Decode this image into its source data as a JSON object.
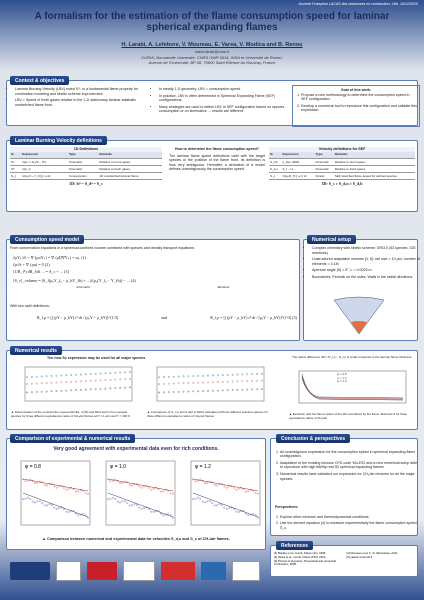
{
  "header": {
    "event": "Journée Française LACAS des doctorants en combustion, Lille, 16/12/2015",
    "title": "A formalism for the estimation of the flame consumption speed for laminar spherical expanding flames",
    "authors": "H. Larabi, A. Lefebvre, V. Moureau, E. Varea, V. Modica and B. Renou",
    "email": "hakim.larabi@coria.fr",
    "affiliation": [
      "CORIA, Normandie Université, CNRS UMR 6614, INSA et Université de Rouen,",
      "Avenue de l'Université, BP 08, 76800 Saint Etienne du Rouvray, France"
    ]
  },
  "context": {
    "heading": "Context & objectives",
    "col1": [
      "Laminar Burning Velocity (LBV) noted Sₗ⁰, is a fundamental flame property for combustion modeling and kinetic scheme improvement.",
      "LBV = Speed of fresh gases relative to the 1-D stationnary laminar adiabatic unstretched flame front."
    ],
    "col2": [
      "In steady 1-D geometry, LBV = consumption speed.",
      "In practice, LBV is often determined in Spherical Expanding Flame (SEF) configurations.",
      "Many strategies are used to define LBV in SEF configuration based on species consumption or on kinematics → results are different."
    ],
    "goal_title": "Goal of this work:",
    "goals": [
      "Propose a new methodology to determine the consumption speed in SEF configuration.",
      "Develop a numerical tool to reproduce this configuration and validate this expression."
    ]
  },
  "definitions": {
    "heading": "Laminar Burning Velocity definitions",
    "table1": {
      "caption": "1D Definitions",
      "header": [
        "Sₗ",
        "Expression",
        "Type",
        "Remarks"
      ],
      "rows": [
        [
          "Sₗᵘ",
          "ṁ/ρᵤ = Sᵤ(Ψ̄ − Ψ̄ᵤ)",
          "Kinematic",
          "Relative to burnt gases"
        ],
        [
          "Sₗᵇ",
          "ṁ/ρ_b",
          "Kinematic",
          "Relative to fresh gases"
        ],
        [
          "S_c",
          "1/(ρᵤ(Yᵤ−Y_b)) ∫ ω̇ dx",
          "Consumption",
          "1D unstretched laminar flame"
        ]
      ],
      "footer": "1D: Sₗᵘ = S_dᵘ = S_c"
    },
    "middle": {
      "question": "How to determine the flame consumption speed?",
      "text": "The laminar flame speed definitions valid with the target species or the position of the flame front. Its definition is thus very ambiguous. Hereafter, a derivation of a model defines unambiguously the consumption speed."
    },
    "table2": {
      "caption": "Velocity definitions for SEF",
      "header": [
        "Sₗ",
        "Expression",
        "Type",
        "Remarks"
      ],
      "rows": [
        [
          "S_d,b",
          "ρ_b/ρᵤ dR/dt",
          "Kinematic",
          "Relative to burnt gases"
        ],
        [
          "S_d,u",
          "S_f − Uᵤ",
          "Kinematic",
          "Relative to fresh gases"
        ],
        [
          "S_c",
          "1/(ρᵤR_f²) ∫ ω̇ r² dr",
          "Kinetic",
          "SEF stretched flame speed for defined species"
        ]
      ],
      "footer": "3D: S_c ≠ S_d,u ≠ S_d,b"
    }
  },
  "model": {
    "heading": "Consumption speed model",
    "intro": "From conservation equations in a spherical confined volume combined with species and density transport equations:",
    "equations": [
      "∂ρYₖ/∂t + ∇·(ρuYₖ) = ∇·(ρD∇Yₖ) + ω̇ₖ   (1)",
      "∂ρ/∂t + ∇·(ρu) = 0   (2)",
      "(1/R_f²) dR_f/dt ... = S_c + ... (3)"
    ],
    "main": "⟨S_c⟩_volume = (S_f(ρᵤY_fᵤ − ρ_bY_fb) + ...)/(ρᵤ(Y_fᵤ − Y_fb)) − ...   (4)",
    "labels": [
      "Kinematic",
      "Residual"
    ],
    "radii_intro": "With two radii definitions:",
    "radii": [
      "R_f,ρ = [∫ (ρY − ρ_bY) r² dr / (ρᵤY − ρ_bY)]^(1/3)",
      "R_f,ρ = [∫ (ρY − ρ_bY) r² dr / (ρᵤY − ρ_bY)]^(1/3)   (5)"
    ],
    "and": "and"
  },
  "setup": {
    "heading": "Numerical setup",
    "items": [
      "Complex chemistry with kinetic scheme: GRI3.0 (53 species, 325 reactions)",
      "Unstructured adaptative meshes [4, 5]: cell size = 10 μm, number of elements = 4.1M",
      "Aperture angle (θ) = 5°, L = 0.0025 m",
      "Boundaries: Periodic on the sides, Walls in the radial directions."
    ]
  },
  "results": {
    "heading": "Numerical results",
    "subtitle": "The new Sc expression may be used for all major species",
    "captions": [
      "▲ Determination of the consumption speed with Eq. 4 (W) and RHS terms from several species for three different equivalence ratios of CH₄/air flames at P = 1 atm and T = 300 K",
      "▲ Comparison of S_c,ρ terms (left & RHS) calculated with the different reactive species for three different equivalence ratios of CH₄/air flames",
      "▲ Evolution with the flame radius of the dR normalized by the flame thickness δ for three equivalence ratios of CH₄/air"
    ],
    "note": "The radius difference dR = R_f,ρ − R_f,ρ is small compared to the laminar flame thickness",
    "legend": [
      "φ = 0.8",
      "φ = 1.0",
      "φ = 1.2"
    ]
  },
  "comparison": {
    "heading": "Comparison of experimental & numerical results",
    "subtitle": "Very good agreement with experimental data even for rich conditions.",
    "panels": [
      "φ = 0.8",
      "φ = 1.0",
      "φ = 1.2"
    ],
    "caption": "▲ Comparison between numerical and experimental data for velocities S_d,u and S_c of CH₄/air flames."
  },
  "conclusion": {
    "heading": "Conclusion & perspectives",
    "items": [
      "An unambiguous expression for the consumption speed in spherical expanding flame configuration.",
      "Adaptation of the existing inhouse CFD code YALES2 and a new numerical setup able to reproduce with high fidelity real 3D spherical expanding flames.",
      "Numerical results have validated our expression for CH₄/air mixtures for all the major species."
    ],
    "persp_title": "Perspectives:",
    "persp": [
      "Explore other mixtures and thermodynamical conditions.",
      "Use the derived equation (4) to measure experimentally the flame consumption speed, S_c."
    ]
  },
  "references": {
    "heading": "References",
    "items": [
      "[1] Bradley et al. Comb. Flame (3o), 1996",
      "[2] Varea et al., Comb. Flame (159), 2012",
      "[3] Poinsot & Veynante, Theoretical and numerical combustion, 2005",
      "[4] Moureau et al. C. R. Mécanique, 2011",
      "[5] yales2.coria-cfd.fr"
    ]
  }
}
